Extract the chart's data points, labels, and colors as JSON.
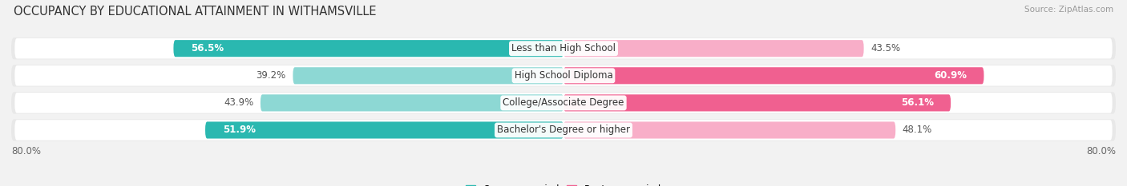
{
  "title": "OCCUPANCY BY EDUCATIONAL ATTAINMENT IN WITHAMSVILLE",
  "source": "Source: ZipAtlas.com",
  "categories": [
    "Less than High School",
    "High School Diploma",
    "College/Associate Degree",
    "Bachelor's Degree or higher"
  ],
  "owner_pct": [
    56.5,
    39.2,
    43.9,
    51.9
  ],
  "renter_pct": [
    43.5,
    60.9,
    56.1,
    48.1
  ],
  "owner_color_dark": "#2ab8b0",
  "owner_color_light": "#8dd8d4",
  "renter_color_dark": "#f06090",
  "renter_color_light": "#f8aec8",
  "owner_text_colors": [
    "white",
    "#555555",
    "#555555",
    "white"
  ],
  "renter_text_colors": [
    "#555555",
    "white",
    "white",
    "#555555"
  ],
  "owner_bar_colors": [
    "dark",
    "light",
    "light",
    "dark"
  ],
  "renter_bar_colors": [
    "light",
    "dark",
    "dark",
    "light"
  ],
  "axis_range": 80.0,
  "background_color": "#f2f2f2",
  "row_bg_color": "#e8e8e8",
  "row_inner_color": "#ffffff",
  "title_fontsize": 10.5,
  "label_fontsize": 8.5,
  "source_fontsize": 7.5
}
